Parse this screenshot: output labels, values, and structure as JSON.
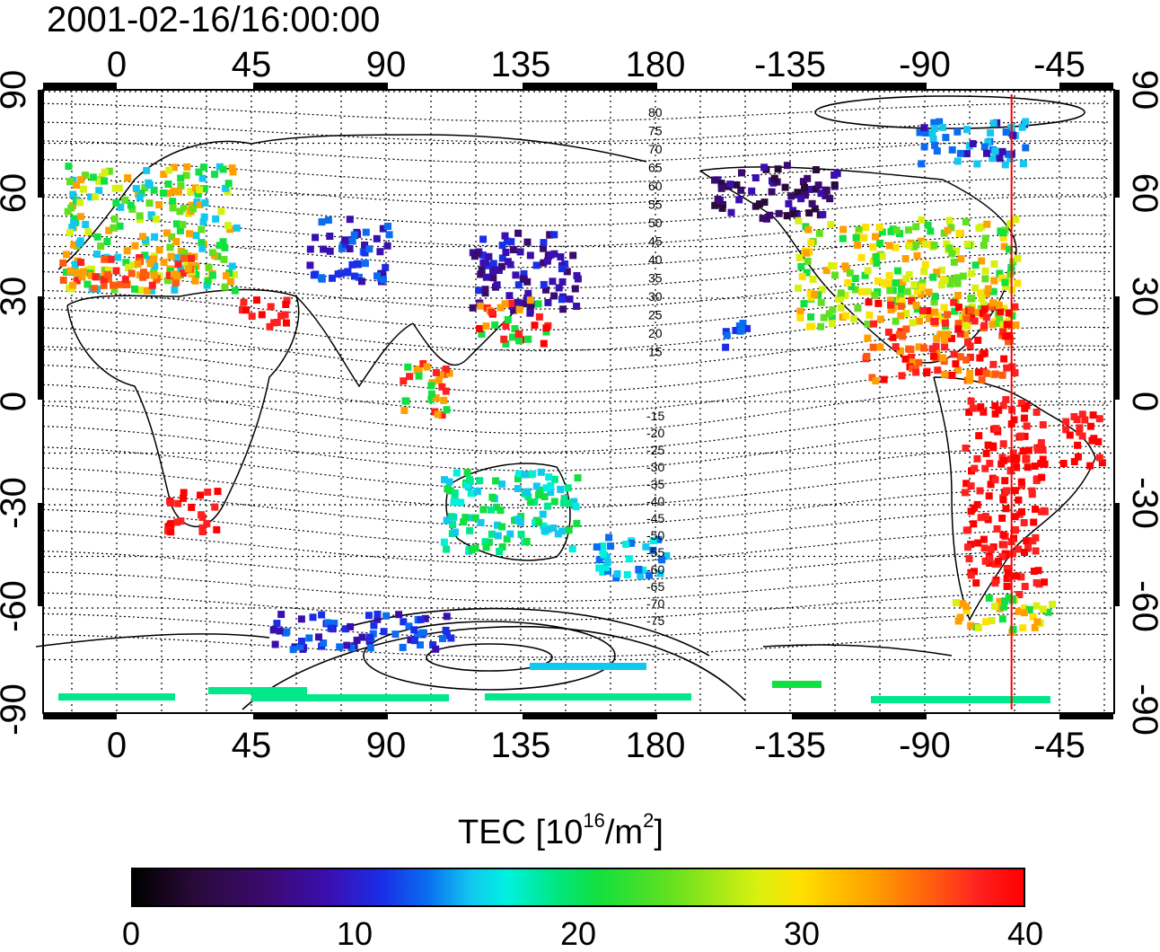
{
  "timestamp": "2001-02-16/16:00:00",
  "top_axis": {
    "labels": [
      "0",
      "45",
      "90",
      "135",
      "180",
      "-135",
      "-90",
      "-45"
    ]
  },
  "bottom_axis": {
    "labels": [
      "0",
      "45",
      "90",
      "135",
      "180",
      "-135",
      "-90",
      "-45"
    ]
  },
  "left_axis": {
    "labels": [
      "90",
      "60",
      "30",
      "0",
      "-30",
      "-60",
      "-90"
    ]
  },
  "right_axis": {
    "labels": [
      "90",
      "60",
      "30",
      "0",
      "-30",
      "-60",
      "-90"
    ]
  },
  "contour_labels_north": [
    "80",
    "75",
    "70",
    "65",
    "60",
    "55",
    "50",
    "45",
    "40",
    "35",
    "30",
    "25",
    "20",
    "15"
  ],
  "contour_labels_south": [
    "-15",
    "-20",
    "-25",
    "-30",
    "-35",
    "-40",
    "-45",
    "-50",
    "-55",
    "-60",
    "-65",
    "-70",
    "-75"
  ],
  "marker_line": {
    "longitude": -61,
    "color": "#ff0000"
  },
  "colorbar": {
    "title_prefix": "TEC  [10",
    "title_exp": "16",
    "title_mid": "/m",
    "title_exp2": "2",
    "title_suffix": "]",
    "ticks": [
      "0",
      "10",
      "20",
      "30",
      "40"
    ],
    "range": [
      0,
      40
    ]
  }
}
